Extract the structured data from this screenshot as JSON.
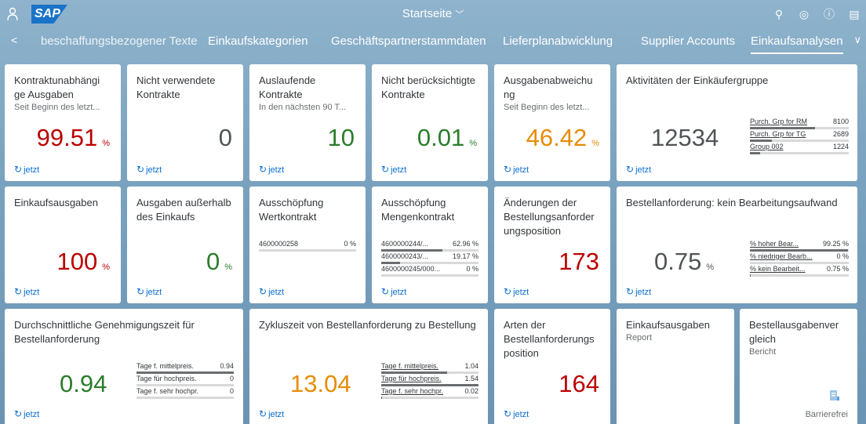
{
  "shell": {
    "title": "Startseite"
  },
  "tabs": [
    "beschaffungsbezogener Texte",
    "Einkaufskategorien",
    "Geschäftspartnerstammdaten",
    "Lieferplanabwicklung",
    "Supplier Accounts",
    "Einkaufsanalysen"
  ],
  "refresh_label": "jetzt",
  "tiles": {
    "t1": {
      "title": "Kontraktunabhängi ge Ausgaben",
      "subtitle": "Seit Beginn des letzt...",
      "value": "99.51",
      "unit": "%"
    },
    "t2": {
      "title": "Nicht verwendete Kontrakte",
      "value": "0"
    },
    "t3": {
      "title": "Auslaufende Kontrakte",
      "subtitle": "In den nächsten 90 T...",
      "value": "10"
    },
    "t4": {
      "title": "Nicht berücksichtigte Kontrakte",
      "value": "0.01",
      "unit": "%"
    },
    "t5": {
      "title": "Ausgabenabweichu ng",
      "subtitle": "Seit Beginn des letzt...",
      "value": "46.42",
      "unit": "%"
    },
    "t6": {
      "title": "Aktivitäten der Einkäufergruppe",
      "value": "12534",
      "items": [
        {
          "label": "Purch. Grp for RM",
          "value": "8100",
          "frac": 0.66
        },
        {
          "label": "Purch. Grp for TG",
          "value": "2689",
          "frac": 0.22
        },
        {
          "label": "Group 002",
          "value": "1224",
          "frac": 0.1
        }
      ]
    },
    "t7": {
      "title": "Einkaufsausgaben",
      "value": "100",
      "unit": "%"
    },
    "t8": {
      "title": "Ausgaben außerhalb des Einkaufs",
      "value": "0",
      "unit": "%"
    },
    "t9": {
      "title": "Ausschöpfung Wertkontrakt",
      "items": [
        {
          "label": "4600000258",
          "value": "0 %",
          "frac": 0
        }
      ]
    },
    "t10": {
      "title": "Ausschöpfung Mengenkontrakt",
      "items": [
        {
          "label": "4600000244/...",
          "value": "62.96 %",
          "frac": 0.63
        },
        {
          "label": "4600000243/...",
          "value": "19.17 %",
          "frac": 0.19
        },
        {
          "label": "4600000245/000...",
          "value": "0 %",
          "frac": 0
        }
      ]
    },
    "t11": {
      "title": "Änderungen der Bestellungsanforder ungsposition",
      "value": "173"
    },
    "t12": {
      "title": "Bestellanforderung: kein Bearbeitungsaufwand",
      "value": "0.75",
      "unit": "%",
      "items": [
        {
          "label": "% hoher Bear...",
          "value": "99.25 %",
          "frac": 0.99
        },
        {
          "label": "% niedriger Bearb...",
          "value": "0 %",
          "frac": 0
        },
        {
          "label": "% kein Bearbeit...",
          "value": "0.75 %",
          "frac": 0.01
        }
      ]
    },
    "t13": {
      "title": "Durchschnittliche Genehmigungszeit für Bestellanforderung",
      "value": "0.94",
      "items": [
        {
          "label": "Tage f. mittelpreis.",
          "value": "0.94",
          "frac": 1
        },
        {
          "label": "Tage für hochpreis.",
          "value": "0",
          "frac": 0
        },
        {
          "label": "Tage f. sehr hochpr.",
          "value": "0",
          "frac": 0
        }
      ]
    },
    "t14": {
      "title": "Zykluszeit von Bestellanforderung zu Bestellung",
      "value": "13.04",
      "items": [
        {
          "label": "Tage f. mittelpreis.",
          "value": "1.04",
          "frac": 0.68
        },
        {
          "label": "Tage für hochpreis.",
          "value": "1.54",
          "frac": 1
        },
        {
          "label": "Tage f. sehr hochpr.",
          "value": "0.02",
          "frac": 0.01
        }
      ]
    },
    "t15": {
      "title": "Arten der Bestellanforderungs position",
      "value": "164"
    },
    "t16": {
      "title": "Einkaufsausgaben",
      "subtitle": "Report"
    },
    "t17": {
      "title": "Bestellausgabenver gleich",
      "subtitle": "Bericht",
      "footer": "Barrierefrei"
    }
  }
}
